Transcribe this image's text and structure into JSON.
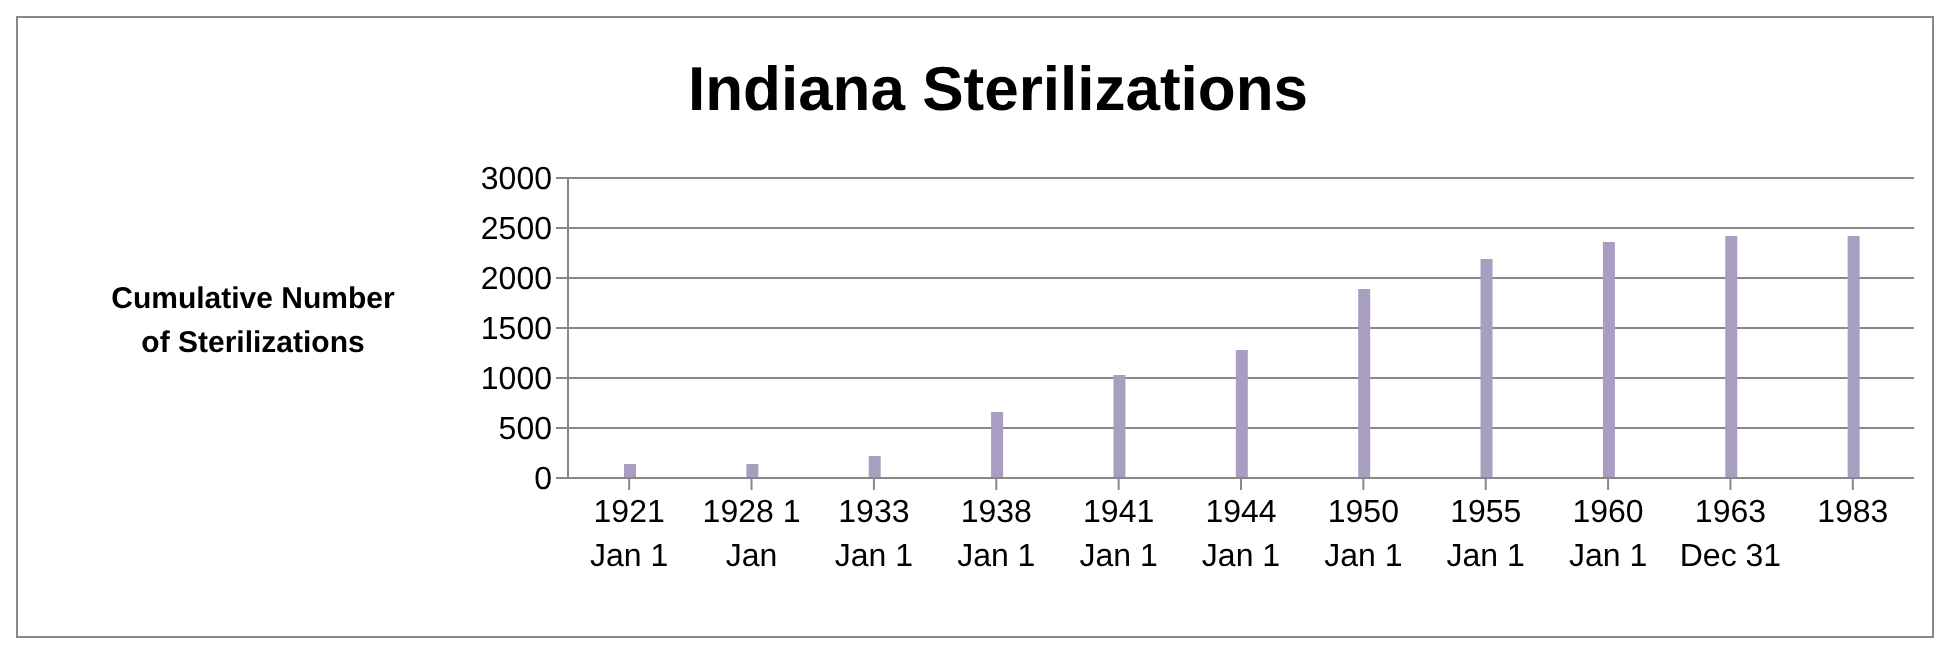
{
  "chart_data": {
    "type": "bar",
    "title": "Indiana Sterilizations",
    "ylabel": "Cumulative Number of Sterilizations",
    "categories": [
      "1921 Jan 1",
      "1928 1 Jan",
      "1933 Jan 1",
      "1938 Jan 1",
      "1941 Jan 1",
      "1944 Jan 1",
      "1950 Jan 1",
      "1955 Jan 1",
      "1960 Jan 1",
      "1963 Dec 31",
      "1983"
    ],
    "values": [
      140,
      140,
      220,
      660,
      1030,
      1280,
      1890,
      2190,
      2360,
      2420,
      2420
    ],
    "color": "#a89ec0",
    "ylim": [
      0,
      3000
    ],
    "yticks": [
      0,
      500,
      1000,
      1500,
      2000,
      2500,
      3000
    ],
    "grid": "y",
    "legend": false
  }
}
